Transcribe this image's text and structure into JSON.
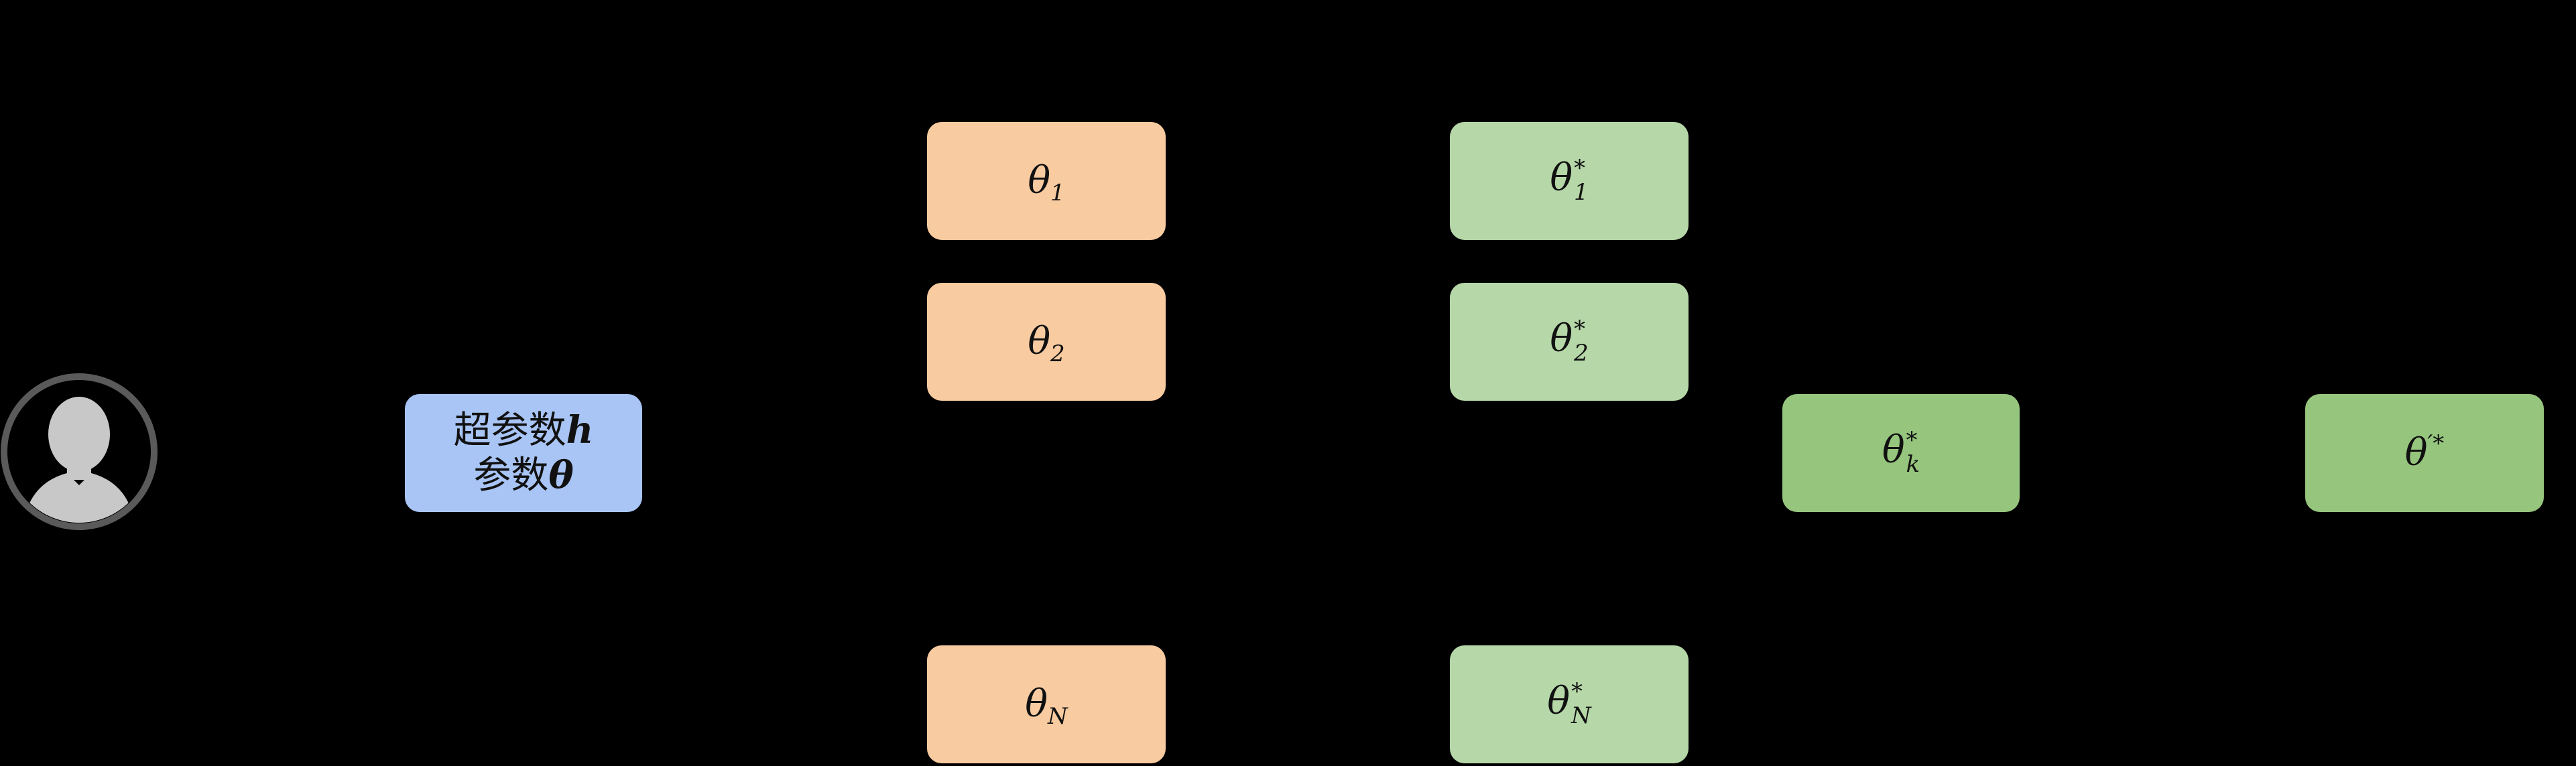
{
  "user": {
    "icon": "user-avatar-icon",
    "colors": {
      "ring": "#5a5a5a",
      "fill": "#c8c8c8"
    }
  },
  "hyper_box": {
    "line1_text": "超参数",
    "line1_var": "h",
    "line2_text": "参数",
    "line2_var": "θ",
    "color": "#a9c5f5"
  },
  "candidates": [
    {
      "symbol": "θ",
      "sub": "1"
    },
    {
      "symbol": "θ",
      "sub": "2"
    },
    {
      "symbol": "θ",
      "sub": "N"
    }
  ],
  "trained": [
    {
      "symbol": "θ",
      "sub": "1",
      "sup": "*"
    },
    {
      "symbol": "θ",
      "sub": "2",
      "sup": "*"
    },
    {
      "symbol": "θ",
      "sub": "N",
      "sup": "*"
    }
  ],
  "selected": {
    "symbol": "θ",
    "sub": "k",
    "sup": "*"
  },
  "final": {
    "symbol": "θ",
    "sup": "′*"
  },
  "colors": {
    "candidate": "#f8cba0",
    "trained": "#b6d8a8",
    "selected": "#96c57d",
    "final": "#96c57d",
    "background": "#000000"
  }
}
